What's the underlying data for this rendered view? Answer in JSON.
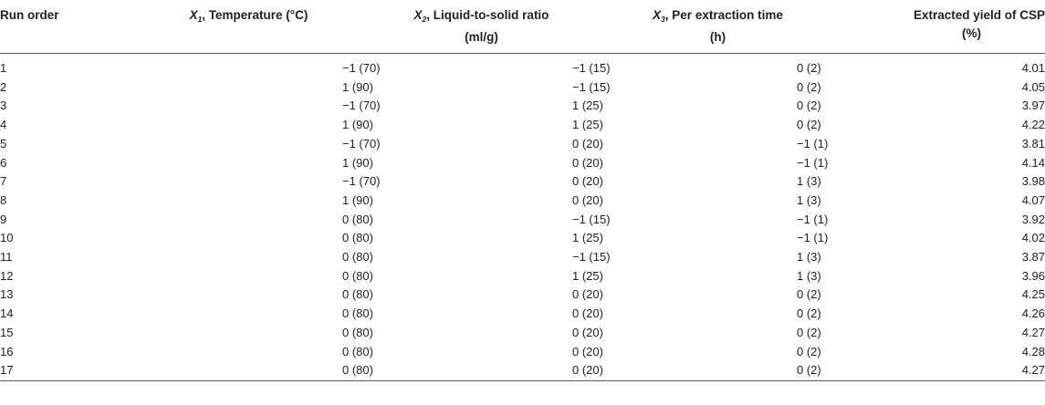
{
  "table": {
    "headers": {
      "run_order": "Run order",
      "x1_symbol": "X",
      "x1_sub": "1",
      "x1_rest": ", Temperature (°C)",
      "x2_symbol": "X",
      "x2_sub": "2",
      "x2_rest": ", Liquid-to-solid ratio",
      "x2_unit": "(ml/g)",
      "x3_symbol": "X",
      "x3_sub": "3",
      "x3_rest": ", Per extraction time",
      "x3_unit": "(h)",
      "yield_label": "Extracted yield of CSP",
      "yield_unit": "(%)"
    },
    "rows": [
      {
        "run": "1",
        "x1": "−1 (70)",
        "x2": "−1 (15)",
        "x3": "0 (2)",
        "yield": "4.01"
      },
      {
        "run": "2",
        "x1": "1 (90)",
        "x2": "−1 (15)",
        "x3": "0 (2)",
        "yield": "4.05"
      },
      {
        "run": "3",
        "x1": "−1 (70)",
        "x2": "1 (25)",
        "x3": "0 (2)",
        "yield": "3.97"
      },
      {
        "run": "4",
        "x1": "1 (90)",
        "x2": "1 (25)",
        "x3": "0 (2)",
        "yield": "4.22"
      },
      {
        "run": "5",
        "x1": "−1 (70)",
        "x2": "0 (20)",
        "x3": "−1 (1)",
        "yield": "3.81"
      },
      {
        "run": "6",
        "x1": "1 (90)",
        "x2": "0 (20)",
        "x3": "−1 (1)",
        "yield": "4.14"
      },
      {
        "run": "7",
        "x1": "−1 (70)",
        "x2": "0 (20)",
        "x3": "1 (3)",
        "yield": "3.98"
      },
      {
        "run": "8",
        "x1": "1 (90)",
        "x2": "0 (20)",
        "x3": "1 (3)",
        "yield": "4.07"
      },
      {
        "run": "9",
        "x1": "0 (80)",
        "x2": "−1 (15)",
        "x3": "−1 (1)",
        "yield": "3.92"
      },
      {
        "run": "10",
        "x1": "0 (80)",
        "x2": "1 (25)",
        "x3": "−1 (1)",
        "yield": "4.02"
      },
      {
        "run": "11",
        "x1": "0 (80)",
        "x2": "−1 (15)",
        "x3": "1 (3)",
        "yield": "3.87"
      },
      {
        "run": "12",
        "x1": "0 (80)",
        "x2": "1 (25)",
        "x3": "1 (3)",
        "yield": "3.96"
      },
      {
        "run": "13",
        "x1": "0 (80)",
        "x2": "0 (20)",
        "x3": "0 (2)",
        "yield": "4.25"
      },
      {
        "run": "14",
        "x1": "0 (80)",
        "x2": "0 (20)",
        "x3": "0 (2)",
        "yield": "4.26"
      },
      {
        "run": "15",
        "x1": "0 (80)",
        "x2": "0 (20)",
        "x3": "0 (2)",
        "yield": "4.27"
      },
      {
        "run": "16",
        "x1": "0 (80)",
        "x2": "0 (20)",
        "x3": "0 (2)",
        "yield": "4.28"
      },
      {
        "run": "17",
        "x1": "0 (80)",
        "x2": "0 (20)",
        "x3": "0 (2)",
        "yield": "4.27"
      }
    ]
  }
}
